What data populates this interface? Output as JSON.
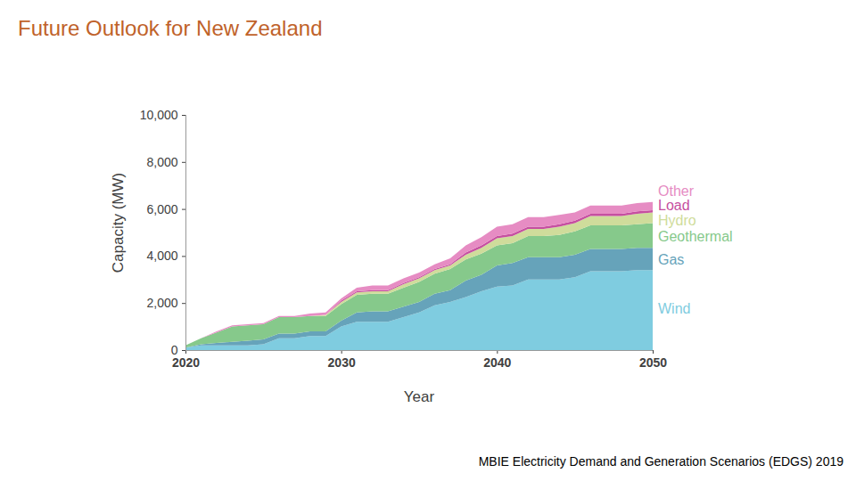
{
  "chart_data": {
    "type": "area",
    "stacked": true,
    "title": "Future Outlook for New Zealand",
    "caption": "MBIE Electricity Demand and Generation Scenarios (EDGS) 2019",
    "x_label": "Year",
    "y_label": "Capacity (MW)",
    "legend": "right",
    "x": [
      2020,
      2021,
      2022,
      2023,
      2024,
      2025,
      2026,
      2027,
      2028,
      2029,
      2030,
      2031,
      2032,
      2033,
      2034,
      2035,
      2036,
      2037,
      2038,
      2039,
      2040,
      2041,
      2042,
      2043,
      2044,
      2045,
      2046,
      2047,
      2048,
      2049,
      2050
    ],
    "xlim": [
      2020,
      2050
    ],
    "xticks": [
      2020,
      2030,
      2040,
      2050
    ],
    "ylim": [
      0,
      10000
    ],
    "yticks": [
      0,
      {
        "value": 2000,
        "label": "2,000"
      },
      {
        "value": 4000,
        "label": "4,000"
      },
      {
        "value": 6000,
        "label": "6,000"
      },
      {
        "value": 8000,
        "label": "8,000"
      },
      {
        "value": 10000,
        "label": "10,000"
      }
    ],
    "series": [
      {
        "name": "Wind",
        "color": "#7fcce0",
        "values": [
          100,
          200,
          200,
          200,
          200,
          250,
          500,
          500,
          600,
          600,
          1000,
          1200,
          1200,
          1200,
          1400,
          1600,
          1900,
          2050,
          2250,
          2500,
          2700,
          2750,
          3000,
          3000,
          3000,
          3100,
          3350,
          3350,
          3350,
          3400,
          3400
        ]
      },
      {
        "name": "Gas",
        "color": "#66a3ba",
        "values": [
          0,
          50,
          100,
          150,
          200,
          200,
          200,
          200,
          200,
          200,
          250,
          400,
          450,
          450,
          450,
          450,
          500,
          500,
          700,
          700,
          900,
          950,
          950,
          950,
          950,
          950,
          950,
          950,
          950,
          950,
          950
        ]
      },
      {
        "name": "Geothermal",
        "color": "#86c98b",
        "values": [
          100,
          250,
          450,
          650,
          650,
          650,
          700,
          700,
          650,
          650,
          700,
          750,
          750,
          750,
          800,
          850,
          850,
          900,
          900,
          900,
          850,
          850,
          900,
          900,
          950,
          1000,
          1000,
          1000,
          1000,
          1000,
          1050
        ]
      },
      {
        "name": "Hydro",
        "color": "#cfdc9b",
        "values": [
          0,
          0,
          0,
          0,
          0,
          0,
          0,
          0,
          0,
          50,
          100,
          100,
          100,
          100,
          150,
          150,
          150,
          150,
          200,
          250,
          300,
          300,
          300,
          300,
          350,
          350,
          400,
          400,
          400,
          450,
          450
        ]
      },
      {
        "name": "Load",
        "color": "#c64fa0",
        "values": [
          0,
          0,
          0,
          0,
          0,
          0,
          0,
          0,
          0,
          0,
          50,
          50,
          50,
          50,
          50,
          50,
          50,
          50,
          100,
          100,
          100,
          100,
          100,
          100,
          100,
          100,
          100,
          100,
          100,
          100,
          100
        ]
      },
      {
        "name": "Other",
        "color": "#e68cc3",
        "values": [
          0,
          0,
          50,
          50,
          50,
          50,
          50,
          50,
          100,
          100,
          100,
          150,
          200,
          200,
          200,
          200,
          200,
          250,
          300,
          350,
          400,
          400,
          400,
          400,
          400,
          350,
          350,
          350,
          350,
          350,
          350
        ]
      }
    ]
  }
}
